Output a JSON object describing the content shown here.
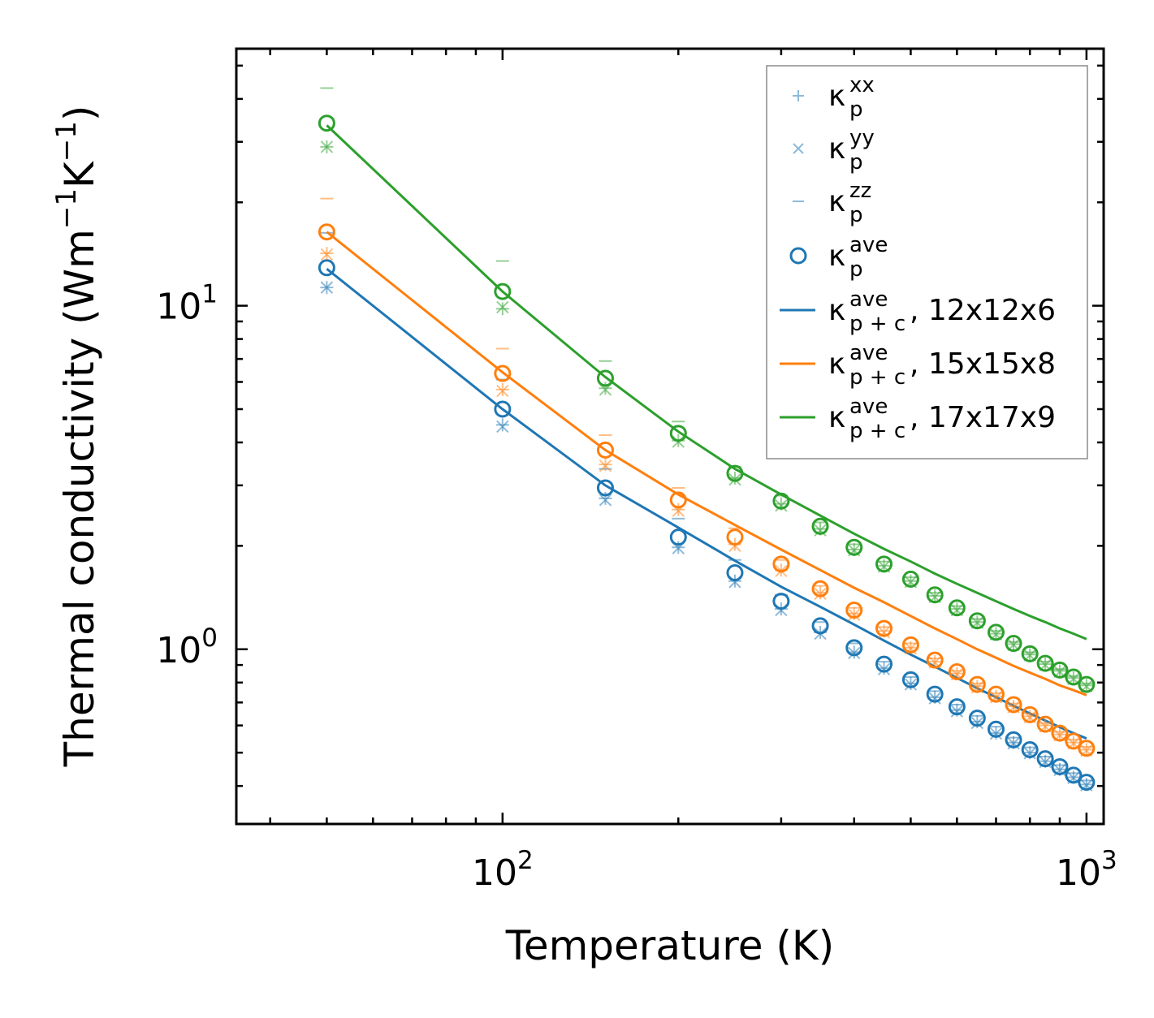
{
  "chart_data": {
    "type": "scatter",
    "xscale": "log",
    "yscale": "log",
    "xlim": [
      35,
      1070
    ],
    "ylim": [
      0.31,
      56
    ],
    "xlabel": "Temperature (K)",
    "ylabel": {
      "main": "Thermal conductivity (Wm",
      "exp1": "−1",
      "mid": "K",
      "exp2": "−1",
      "end": ")"
    },
    "x_ticks": [
      {
        "base": "10",
        "exp": "2",
        "value": 100
      },
      {
        "base": "10",
        "exp": "3",
        "value": 1000
      }
    ],
    "y_ticks": [
      {
        "base": "10",
        "exp": "0",
        "value": 1
      },
      {
        "base": "10",
        "exp": "1",
        "value": 10
      }
    ],
    "x": [
      50,
      100,
      150,
      200,
      250,
      300,
      350,
      400,
      450,
      500,
      550,
      600,
      650,
      700,
      750,
      800,
      850,
      900,
      950,
      1000
    ],
    "series": [
      {
        "name": "12x12x6",
        "color": "#1f77b4",
        "kappa_ave": [
          12.9,
          5.0,
          2.95,
          2.12,
          1.67,
          1.38,
          1.17,
          1.01,
          0.905,
          0.815,
          0.74,
          0.68,
          0.63,
          0.585,
          0.545,
          0.51,
          0.48,
          0.455,
          0.43,
          0.41
        ],
        "kappa_xx": [
          11.3,
          4.5,
          2.75,
          1.98,
          1.58,
          1.31,
          1.12,
          0.98,
          0.88,
          0.795,
          0.725,
          0.665,
          0.615,
          0.57,
          0.535,
          0.5,
          0.472,
          0.447,
          0.424,
          0.404
        ],
        "kappa_yy": [
          11.3,
          4.45,
          2.72,
          1.97,
          1.57,
          1.3,
          1.11,
          0.975,
          0.875,
          0.79,
          0.72,
          0.66,
          0.61,
          0.568,
          0.532,
          0.498,
          0.47,
          0.445,
          0.422,
          0.402
        ],
        "kappa_zz": [
          16.3,
          6.1,
          3.35,
          2.4,
          1.82,
          1.44,
          1.2,
          1.04,
          0.92,
          0.83,
          0.755,
          0.69,
          0.64,
          0.595,
          0.553,
          0.518,
          0.487,
          0.46,
          0.436,
          0.415
        ],
        "kappa_pc": [
          12.8,
          5.0,
          3.0,
          2.26,
          1.81,
          1.52,
          1.33,
          1.18,
          1.06,
          0.965,
          0.89,
          0.825,
          0.77,
          0.725,
          0.685,
          0.65,
          0.62,
          0.593,
          0.57,
          0.55
        ]
      },
      {
        "name": "15x15x8",
        "color": "#ff7f0e",
        "kappa_ave": [
          16.4,
          6.35,
          3.8,
          2.72,
          2.12,
          1.77,
          1.5,
          1.3,
          1.15,
          1.03,
          0.93,
          0.86,
          0.79,
          0.74,
          0.69,
          0.645,
          0.605,
          0.57,
          0.54,
          0.515
        ],
        "kappa_xx": [
          14.2,
          5.7,
          3.45,
          2.55,
          2.02,
          1.7,
          1.46,
          1.27,
          1.13,
          1.01,
          0.92,
          0.85,
          0.78,
          0.73,
          0.682,
          0.638,
          0.6,
          0.565,
          0.535,
          0.51
        ],
        "kappa_yy": [
          14.1,
          5.65,
          3.42,
          2.53,
          2.0,
          1.69,
          1.45,
          1.26,
          1.12,
          1.005,
          0.915,
          0.845,
          0.775,
          0.725,
          0.678,
          0.634,
          0.596,
          0.562,
          0.532,
          0.507
        ],
        "kappa_zz": [
          20.5,
          7.5,
          4.2,
          2.95,
          2.25,
          1.82,
          1.53,
          1.32,
          1.16,
          1.04,
          0.94,
          0.865,
          0.795,
          0.745,
          0.695,
          0.65,
          0.61,
          0.575,
          0.545,
          0.52
        ],
        "kappa_pc": [
          16.4,
          6.4,
          3.8,
          2.82,
          2.3,
          1.95,
          1.7,
          1.51,
          1.37,
          1.25,
          1.15,
          1.07,
          1.0,
          0.945,
          0.895,
          0.855,
          0.82,
          0.785,
          0.76,
          0.735
        ]
      },
      {
        "name": "17x17x9",
        "color": "#2ca02c",
        "kappa_ave": [
          34.0,
          11.0,
          6.15,
          4.25,
          3.25,
          2.7,
          2.28,
          1.98,
          1.77,
          1.6,
          1.44,
          1.32,
          1.21,
          1.12,
          1.04,
          0.97,
          0.91,
          0.87,
          0.83,
          0.79
        ],
        "kappa_xx": [
          29.0,
          9.8,
          5.75,
          4.05,
          3.15,
          2.65,
          2.24,
          1.95,
          1.75,
          1.58,
          1.43,
          1.31,
          1.2,
          1.11,
          1.035,
          0.965,
          0.905,
          0.865,
          0.825,
          0.785
        ],
        "kappa_yy": [
          29.0,
          9.9,
          5.7,
          4.02,
          3.12,
          2.62,
          2.22,
          1.94,
          1.74,
          1.57,
          1.42,
          1.3,
          1.195,
          1.105,
          1.03,
          0.96,
          0.9,
          0.86,
          0.82,
          0.78
        ],
        "kappa_zz": [
          43.0,
          13.5,
          6.9,
          4.6,
          3.4,
          2.8,
          2.34,
          2.02,
          1.8,
          1.62,
          1.46,
          1.335,
          1.225,
          1.13,
          1.05,
          0.98,
          0.92,
          0.875,
          0.835,
          0.795
        ],
        "kappa_pc": [
          33.5,
          11.0,
          6.2,
          4.3,
          3.35,
          2.82,
          2.45,
          2.17,
          1.96,
          1.8,
          1.66,
          1.55,
          1.46,
          1.38,
          1.31,
          1.25,
          1.2,
          1.15,
          1.11,
          1.07
        ]
      }
    ],
    "legend": {
      "placement": "top-right",
      "marker_color": "#1f77b4",
      "entries": [
        {
          "marker": "plus",
          "base": "κ",
          "sup": "xx",
          "sub": "p",
          "suffix": ""
        },
        {
          "marker": "cross",
          "base": "κ",
          "sup": "yy",
          "sub": "p",
          "suffix": ""
        },
        {
          "marker": "dash",
          "base": "κ",
          "sup": "zz",
          "sub": "p",
          "suffix": ""
        },
        {
          "marker": "circle",
          "base": "κ",
          "sup": "ave",
          "sub": "p",
          "suffix": ""
        },
        {
          "marker": "line",
          "color": "#1f77b4",
          "base": "κ",
          "sup": "ave",
          "sub": "p + c",
          "suffix": ", 12x12x6"
        },
        {
          "marker": "line",
          "color": "#ff7f0e",
          "base": "κ",
          "sup": "ave",
          "sub": "p + c",
          "suffix": ", 15x15x8"
        },
        {
          "marker": "line",
          "color": "#2ca02c",
          "base": "κ",
          "sup": "ave",
          "sub": "p + c",
          "suffix": ", 17x17x9"
        }
      ]
    }
  }
}
